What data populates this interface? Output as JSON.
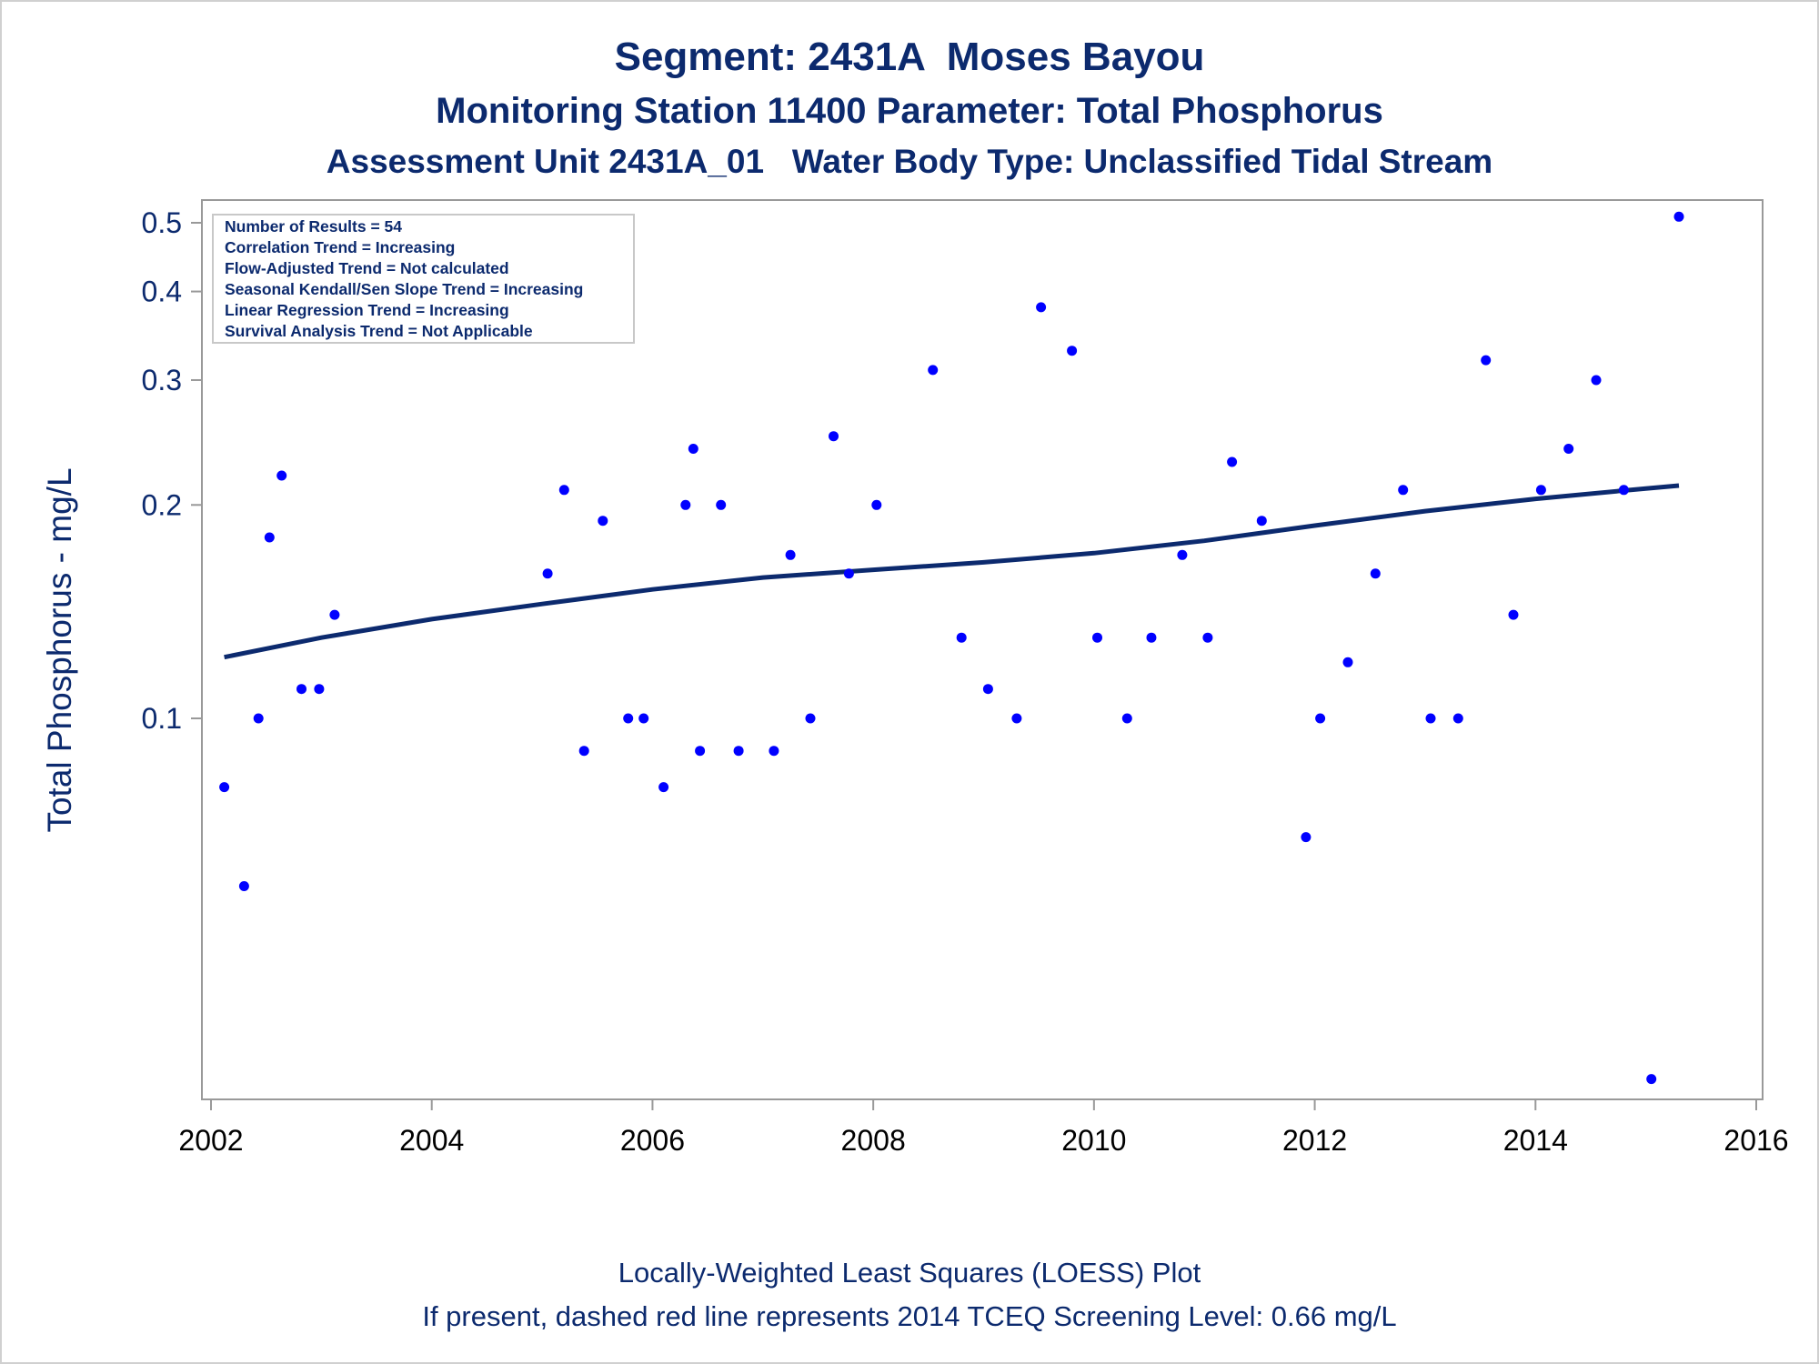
{
  "chart_data": {
    "type": "scatter",
    "title": "Segment: 2431A  Moses Bayou",
    "subtitle": "Monitoring Station 11400 Parameter: Total Phosphorus",
    "subtitle2": "Assessment Unit 2431A_01   Water Body Type: Unclassified Tidal Stream",
    "ylabel": "Total Phosphorus - mg/L",
    "xlabel": "",
    "footnote1": "Locally-Weighted Least Squares (LOESS) Plot",
    "footnote2": "If present, dashed red line represents 2014 TCEQ Screening Level: 0.66 mg/L",
    "y_scale": "log",
    "xlim": [
      2002,
      2016
    ],
    "ylim": [
      0.03,
      0.52
    ],
    "x_ticks": [
      2002,
      2004,
      2006,
      2008,
      2010,
      2012,
      2014,
      2016
    ],
    "x_tick_labels": [
      "2002",
      "2004",
      "2006",
      "2008",
      "2010",
      "2012",
      "2014",
      "2016"
    ],
    "y_ticks": [
      0.1,
      0.2,
      0.3,
      0.4,
      0.5
    ],
    "y_tick_labels": [
      "0.1",
      "0.2",
      "0.3",
      "0.4",
      "0.5"
    ],
    "grid": false,
    "legend_box": {
      "placement": "top-left",
      "lines": [
        "Number of Results = 54",
        "Correlation Trend = Increasing",
        "Flow-Adjusted Trend = Not calculated",
        "Seasonal Kendall/Sen Slope Trend = Increasing",
        "Linear Regression Trend = Increasing",
        "Survival Analysis Trend = Not Applicable"
      ]
    },
    "colors": {
      "points": "#0000ff",
      "trend": "#0c2a6e",
      "axis": "#999999",
      "text": "#0c2a6e"
    },
    "series": [
      {
        "type": "scatter",
        "x": [
          2002.12,
          2002.3,
          2002.43,
          2002.53,
          2002.64,
          2002.82,
          2002.98,
          2003.12,
          2005.05,
          2005.2,
          2005.38,
          2005.55,
          2005.78,
          2005.92,
          2006.1,
          2006.3,
          2006.37,
          2006.43,
          2006.62,
          2006.78,
          2007.1,
          2007.25,
          2007.43,
          2007.64,
          2007.78,
          2008.03,
          2008.54,
          2008.8,
          2009.04,
          2009.3,
          2009.52,
          2009.8,
          2010.03,
          2010.3,
          2010.52,
          2010.8,
          2011.03,
          2011.25,
          2011.52,
          2011.92,
          2012.05,
          2012.3,
          2012.55,
          2012.8,
          2013.05,
          2013.3,
          2013.55,
          2013.8,
          2014.05,
          2014.3,
          2014.55,
          2014.8,
          2015.05,
          2015.3
        ],
        "y": [
          0.08,
          0.058,
          0.1,
          0.18,
          0.22,
          0.11,
          0.11,
          0.14,
          0.16,
          0.21,
          0.09,
          0.19,
          0.1,
          0.1,
          0.08,
          0.2,
          0.24,
          0.09,
          0.2,
          0.09,
          0.09,
          0.17,
          0.1,
          0.25,
          0.16,
          0.2,
          0.31,
          0.13,
          0.11,
          0.1,
          0.38,
          0.33,
          0.13,
          0.1,
          0.13,
          0.17,
          0.13,
          0.23,
          0.19,
          0.068,
          0.1,
          0.12,
          0.16,
          0.21,
          0.1,
          0.1,
          0.32,
          0.14,
          0.21,
          0.24,
          0.3,
          0.21,
          0.031,
          0.51
        ]
      },
      {
        "type": "line",
        "x": [
          2002.12,
          2003,
          2004,
          2005,
          2006,
          2007,
          2008,
          2009,
          2010,
          2011,
          2012,
          2013,
          2014,
          2015,
          2015.3
        ],
        "y": [
          0.122,
          0.13,
          0.138,
          0.145,
          0.152,
          0.158,
          0.162,
          0.166,
          0.171,
          0.178,
          0.187,
          0.196,
          0.204,
          0.211,
          0.213
        ]
      }
    ]
  }
}
